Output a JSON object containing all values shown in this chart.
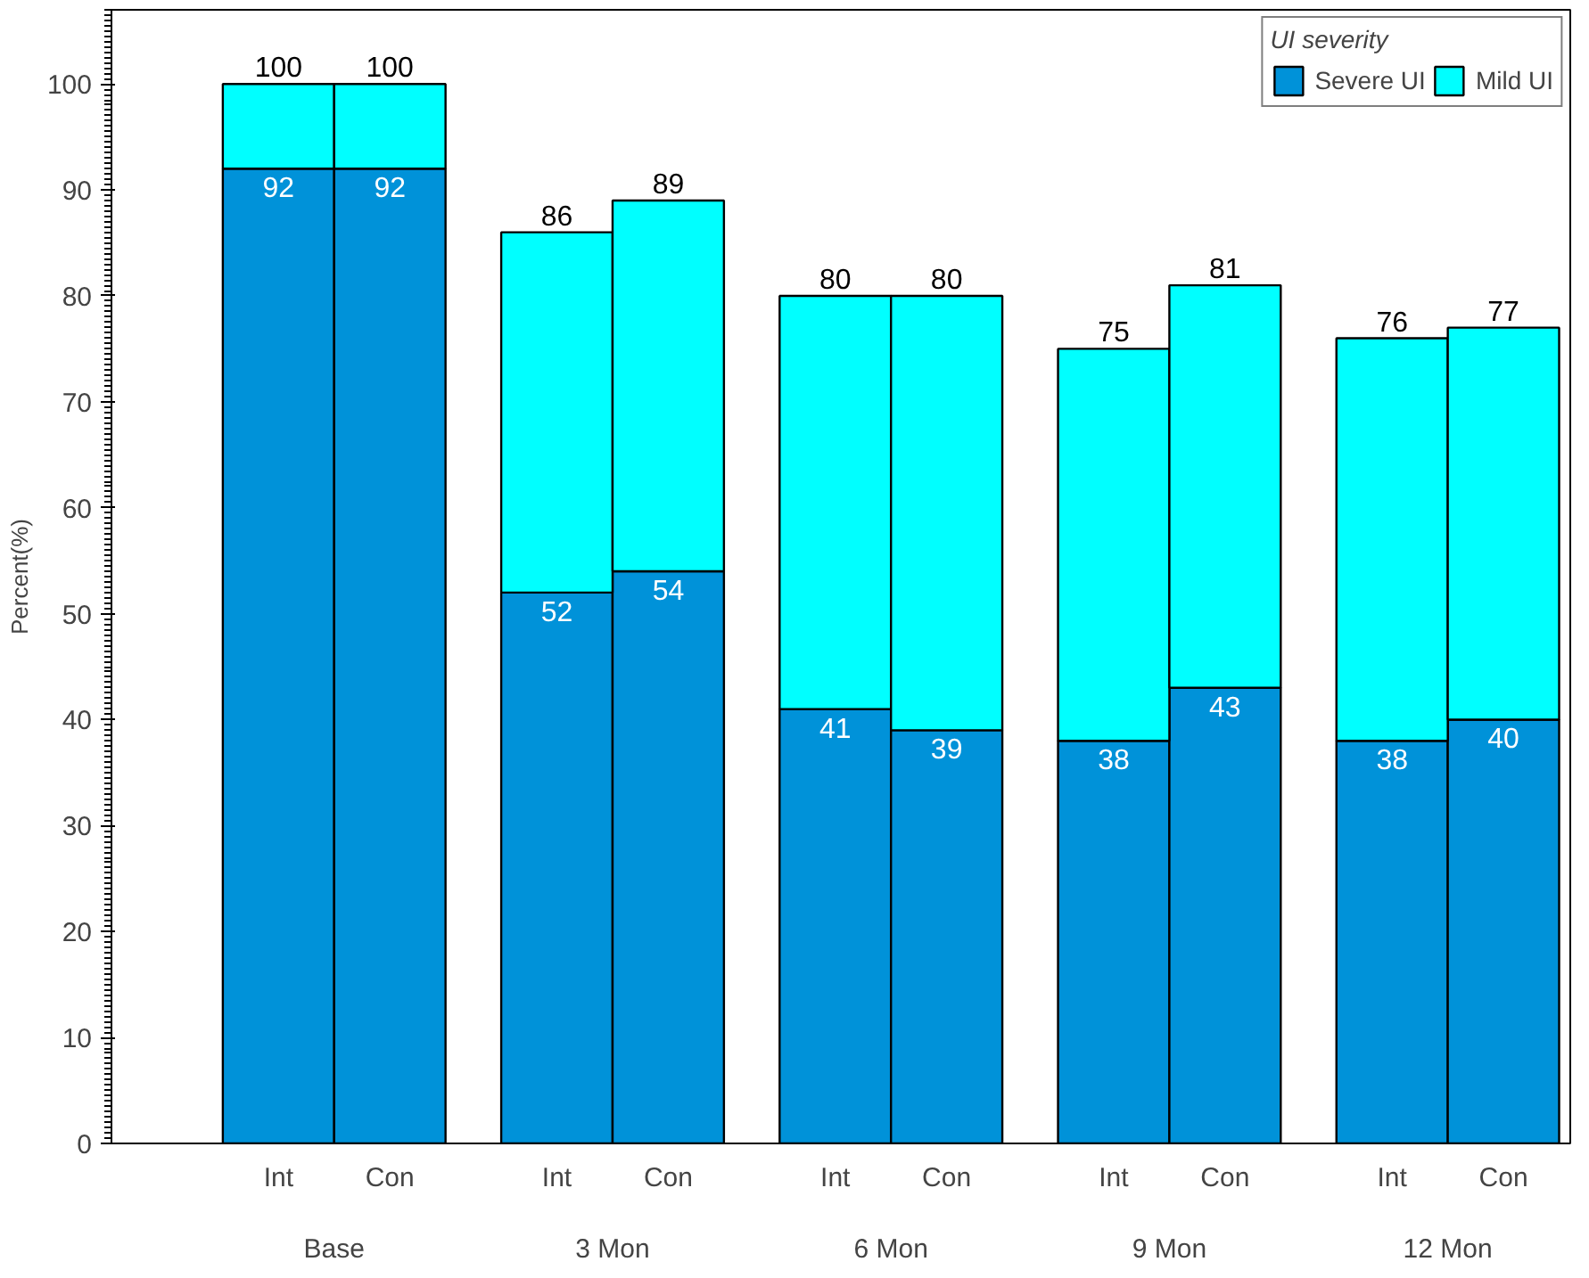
{
  "chart_data": {
    "type": "bar",
    "stacked": true,
    "ylabel": "Percent(%)",
    "legend_title": "UI severity",
    "legend": "top right",
    "categories": [
      "Int",
      "Con",
      "Int",
      "Con",
      "Int",
      "Con",
      "Int",
      "Con",
      "Int",
      "Con"
    ],
    "annotations": [
      "Base",
      "3 Mon",
      "6 Mon",
      "9 Mon",
      "12 Mon"
    ],
    "series": [
      {
        "name": "Severe UI",
        "color": "#0092d9",
        "values": [
          92,
          92,
          52,
          54,
          41,
          39,
          38,
          43,
          38,
          40
        ],
        "value_labels": [
          "92",
          "92",
          "52",
          "54",
          "41",
          "39",
          "38",
          "43",
          "38",
          "40"
        ]
      },
      {
        "name": "Mild UI",
        "color": "#00ffff",
        "values": [
          8,
          8,
          34,
          35,
          39,
          41,
          37,
          38,
          38,
          37
        ]
      }
    ],
    "totals": [
      "100",
      "100",
      "86",
      "89",
      "80",
      "80",
      "75",
      "81",
      "76",
      "77"
    ],
    "ylim": [
      0,
      107
    ],
    "yticks": [
      0,
      10,
      20,
      30,
      40,
      50,
      60,
      70,
      80,
      90,
      100
    ],
    "grid": false
  }
}
